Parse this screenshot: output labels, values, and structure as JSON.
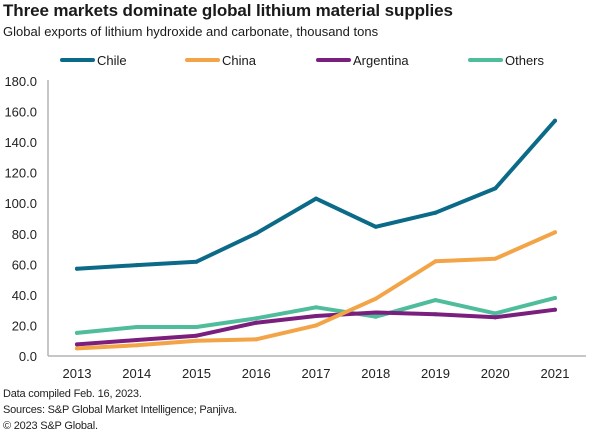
{
  "header": {
    "title": "Three markets dominate global lithium material supplies",
    "subtitle": "Global exports of lithium hydroxide and carbonate, thousand tons"
  },
  "footer": {
    "line1": "Data compiled Feb. 16, 2023.",
    "line2": "Sources: S&P Global Market Intelligence;  Panjiva.",
    "line3": "© 2023 S&P Global."
  },
  "chart_data": {
    "type": "line",
    "title": "Three markets dominate global lithium material supplies",
    "subtitle": "Global exports of lithium hydroxide and carbonate, thousand tons",
    "xlabel": "",
    "ylabel": "",
    "x": [
      "2013",
      "2014",
      "2015",
      "2016",
      "2017",
      "2018",
      "2019",
      "2020",
      "2021"
    ],
    "ylim": [
      0,
      180
    ],
    "yticks": [
      "0.0",
      "20.0",
      "40.0",
      "60.0",
      "80.0",
      "100.0",
      "120.0",
      "140.0",
      "160.0",
      "180.0"
    ],
    "ytick_values": [
      0,
      20,
      40,
      60,
      80,
      100,
      120,
      140,
      160,
      180
    ],
    "grid": false,
    "legend_position": "top",
    "series": [
      {
        "name": "Chile",
        "color": "#0B6A88",
        "values": [
          57.1,
          59.5,
          61.7,
          80.3,
          103.0,
          84.6,
          93.8,
          109.7,
          154.0
        ]
      },
      {
        "name": "China",
        "color": "#F2A447",
        "values": [
          5.0,
          7.0,
          10.0,
          10.9,
          20.0,
          37.5,
          62.0,
          63.7,
          81.0
        ]
      },
      {
        "name": "Argentina",
        "color": "#7A1F7E",
        "values": [
          7.6,
          10.5,
          13.3,
          21.8,
          26.2,
          28.5,
          27.3,
          25.3,
          30.3
        ]
      },
      {
        "name": "Others",
        "color": "#4FBD9B",
        "values": [
          15.1,
          19.0,
          19.0,
          24.7,
          31.9,
          25.7,
          36.6,
          27.9,
          38.0
        ]
      }
    ]
  }
}
